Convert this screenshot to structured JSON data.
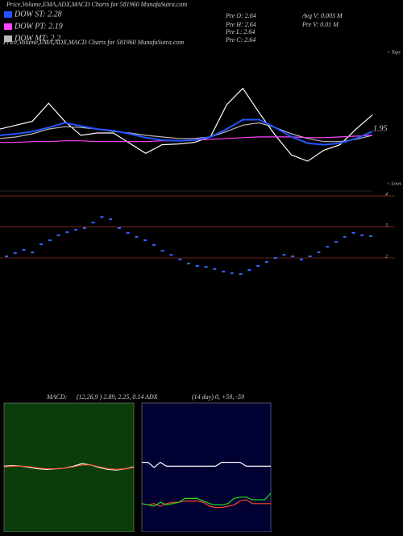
{
  "chart_data": [
    {
      "type": "line",
      "title": "Price,Volume,EMA,ADX,MACD Charts for 581960  MunafaSutra.com",
      "stats": [
        "Pre  O: 2.64",
        "Pre  H: 2.64",
        "Pre  L: 2.64",
        "Pre  C: 2.64",
        "Avg V: 0.003 M",
        "Pre  V: 0.01 M"
      ],
      "annotation": "1.95",
      "tops_label": "< Tops",
      "lows_label": "< Lows",
      "ylim": [
        1.2,
        3.0
      ],
      "series": [
        {
          "color": "#ffffff",
          "values": [
            1.97,
            2.02,
            2.07,
            2.3,
            2.07,
            1.89,
            1.92,
            1.92,
            1.79,
            1.66,
            1.77,
            1.78,
            1.8,
            1.87,
            2.28,
            2.49,
            2.18,
            1.89,
            1.64,
            1.56,
            1.7,
            1.77,
            1.97,
            2.15
          ]
        },
        {
          "name": "DOW MT: 2.2",
          "color": "#bbbbbb",
          "values": [
            1.85,
            1.87,
            1.91,
            1.97,
            2.0,
            1.99,
            1.97,
            1.94,
            1.92,
            1.89,
            1.87,
            1.85,
            1.85,
            1.87,
            1.94,
            2.02,
            2.05,
            1.99,
            1.91,
            1.85,
            1.81,
            1.81,
            1.84,
            1.89
          ]
        },
        {
          "name": "DOW PT: 2.19",
          "color": "#ff44ff",
          "values": [
            1.8,
            1.8,
            1.81,
            1.81,
            1.82,
            1.82,
            1.81,
            1.81,
            1.81,
            1.81,
            1.82,
            1.82,
            1.83,
            1.84,
            1.85,
            1.86,
            1.87,
            1.87,
            1.87,
            1.86,
            1.86,
            1.87,
            1.88,
            1.89
          ]
        },
        {
          "name": "DOW ST: 2.28",
          "color": "#2255ff",
          "values": [
            1.89,
            1.91,
            1.94,
            1.99,
            2.05,
            2.01,
            1.97,
            1.95,
            1.91,
            1.86,
            1.83,
            1.82,
            1.83,
            1.87,
            1.97,
            2.09,
            2.09,
            1.99,
            1.87,
            1.79,
            1.77,
            1.79,
            1.85,
            1.94
          ]
        }
      ]
    },
    {
      "type": "dot",
      "color": "#3366ff",
      "ylim": [
        1.35,
        4.08
      ],
      "yticks": [
        4,
        3,
        2
      ],
      "grid": true,
      "values": [
        2.05,
        2.16,
        2.26,
        2.18,
        2.44,
        2.57,
        2.73,
        2.83,
        2.91,
        2.96,
        3.14,
        3.32,
        3.25,
        2.96,
        2.81,
        2.68,
        2.57,
        2.42,
        2.23,
        2.1,
        1.95,
        1.82,
        1.74,
        1.71,
        1.64,
        1.56,
        1.51,
        1.48,
        1.61,
        1.74,
        1.87,
        2.0,
        2.1,
        2.05,
        1.95,
        2.05,
        2.18,
        2.36,
        2.52,
        2.68,
        2.81,
        2.73,
        2.7
      ]
    },
    {
      "type": "line",
      "title": "MACD:",
      "subtitle": "(12,26,9 ) 2.89, 2.25, 0.14",
      "background": "#0b3d0b",
      "ylim": [
        -1,
        1
      ],
      "series": [
        {
          "color": "#ffffff",
          "values": [
            0.02,
            0.03,
            0.02,
            0.0,
            -0.02,
            -0.03,
            -0.02,
            -0.01,
            0.02,
            0.06,
            0.04,
            0.0,
            -0.03,
            -0.04,
            -0.02,
            0.01
          ]
        },
        {
          "color": "#ff5533",
          "values": [
            0.01,
            0.02,
            0.02,
            0.01,
            -0.01,
            -0.02,
            -0.02,
            -0.01,
            0.01,
            0.04,
            0.04,
            0.01,
            -0.02,
            -0.03,
            -0.02,
            0.0
          ]
        }
      ]
    },
    {
      "type": "line",
      "title": "ADX",
      "subtitle": "(14 day) 0, +59, -59",
      "background": "#000033",
      "ylim": [
        0,
        100
      ],
      "series": [
        {
          "color": "#ffffff",
          "values": [
            54,
            54,
            50,
            54,
            51,
            51,
            51,
            51,
            51,
            51,
            51,
            51,
            51,
            54,
            54,
            54,
            54,
            51,
            51,
            51,
            51,
            51
          ]
        },
        {
          "color": "#ff4422",
          "values": [
            22,
            21,
            22,
            20,
            22,
            23,
            23,
            24,
            24,
            24,
            23,
            20,
            19,
            19,
            20,
            21,
            24,
            25,
            22,
            22,
            22,
            22
          ]
        },
        {
          "color": "#22dd22",
          "values": [
            22,
            21,
            20,
            23,
            21,
            22,
            23,
            26,
            26,
            26,
            24,
            22,
            21,
            21,
            22,
            26,
            27,
            27,
            25,
            25,
            25,
            30
          ]
        }
      ]
    }
  ]
}
